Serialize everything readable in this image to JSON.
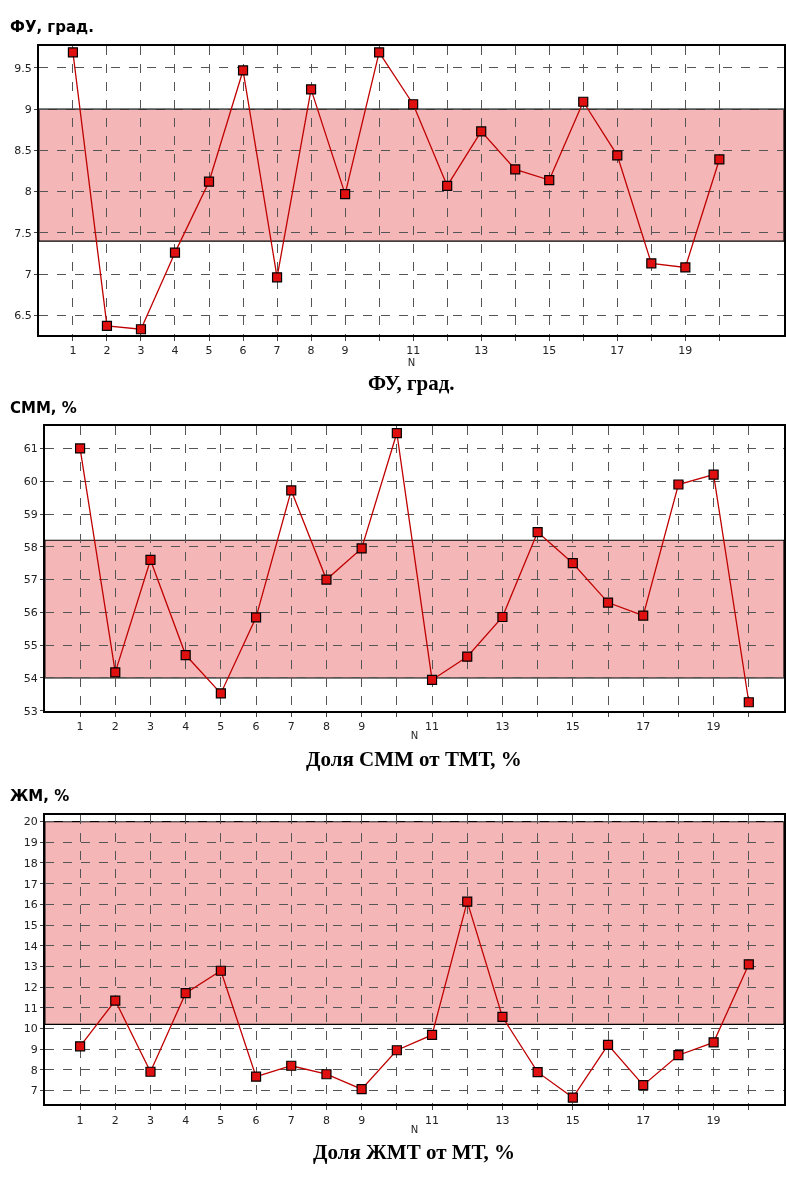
{
  "chart_data": [
    {
      "type": "line",
      "ylabel": "ФУ, град.",
      "xlabel": "N",
      "title": "ФУ, град.",
      "marker": "square",
      "grid": true,
      "line_style": "solid",
      "x": [
        1,
        2,
        3,
        4,
        5,
        6,
        7,
        8,
        9,
        10,
        11,
        12,
        13,
        14,
        15,
        16,
        17,
        18,
        19,
        20
      ],
      "series": [
        {
          "color": "#c00000",
          "values": [
            9.69,
            6.37,
            6.33,
            7.26,
            8.12,
            9.47,
            6.96,
            9.24,
            7.97,
            9.69,
            9.06,
            8.07,
            8.73,
            8.27,
            8.14,
            9.09,
            8.44,
            7.13,
            7.08,
            8.39
          ]
        }
      ],
      "xlim": [
        0,
        21.9
      ],
      "ylim": [
        6.26,
        9.77
      ],
      "xticks": [
        1,
        2,
        3,
        4,
        5,
        6,
        7,
        8,
        9,
        {
          "value": 10,
          "label": null
        },
        11,
        {
          "value": 12,
          "label": null
        },
        13,
        {
          "value": 14,
          "label": null
        },
        15,
        {
          "value": 16,
          "label": null
        },
        17,
        {
          "value": 18,
          "label": null
        },
        19,
        {
          "value": 20,
          "label": null
        }
      ],
      "yticks": [
        6.5,
        7,
        7.5,
        8,
        8.5,
        9,
        9.5
      ],
      "bands": [
        {
          "axis": "y",
          "from": 7.4,
          "to": 9.0,
          "color": "#f4b6b6"
        }
      ]
    },
    {
      "type": "line",
      "ylabel": "СММ, %",
      "xlabel": "N",
      "title": "Доля СММ от ТМТ, %",
      "marker": "square",
      "grid": true,
      "line_style": "solid",
      "x": [
        1,
        2,
        3,
        4,
        5,
        6,
        7,
        8,
        9,
        10,
        11,
        12,
        13,
        14,
        15,
        16,
        17,
        18,
        19,
        20
      ],
      "series": [
        {
          "color": "#c00000",
          "values": [
            61.0,
            54.17,
            57.6,
            54.7,
            53.53,
            55.85,
            59.72,
            57.0,
            57.95,
            61.47,
            53.94,
            54.65,
            55.86,
            58.45,
            57.5,
            56.3,
            55.9,
            59.9,
            60.2,
            53.26
          ]
        }
      ],
      "xlim": [
        0,
        21
      ],
      "ylim": [
        53,
        61.67
      ],
      "xticks": [
        1,
        2,
        3,
        4,
        5,
        6,
        7,
        8,
        9,
        {
          "value": 10,
          "label": null
        },
        11,
        {
          "value": 12,
          "label": null
        },
        13,
        {
          "value": 14,
          "label": null
        },
        15,
        {
          "value": 16,
          "label": null
        },
        17,
        {
          "value": 18,
          "label": null
        },
        19,
        {
          "value": 20,
          "label": null
        }
      ],
      "yticks": [
        53,
        54,
        55,
        56,
        57,
        58,
        59,
        60,
        61
      ],
      "bands": [
        {
          "axis": "y",
          "from": 54.0,
          "to": 58.2,
          "color": "#f4b6b6"
        }
      ]
    },
    {
      "type": "line",
      "ylabel": "ЖМ, %",
      "xlabel": "N",
      "title": "Доля ЖМТ от МТ, %",
      "marker": "square",
      "grid": true,
      "line_style": "solid",
      "x": [
        1,
        2,
        3,
        4,
        5,
        6,
        7,
        8,
        9,
        10,
        11,
        12,
        13,
        14,
        15,
        16,
        17,
        18,
        19,
        20
      ],
      "series": [
        {
          "color": "#c00000",
          "values": [
            9.14,
            11.35,
            7.91,
            11.71,
            12.79,
            7.67,
            8.2,
            7.79,
            7.07,
            8.95,
            9.69,
            16.13,
            10.56,
            7.89,
            6.66,
            9.21,
            7.26,
            8.71,
            9.33,
            13.1
          ]
        }
      ],
      "xlim": [
        0,
        21
      ],
      "ylim": [
        6.33,
        20.31
      ],
      "xticks": [
        1,
        2,
        3,
        4,
        5,
        6,
        7,
        8,
        9,
        {
          "value": 10,
          "label": null
        },
        11,
        {
          "value": 12,
          "label": null
        },
        13,
        {
          "value": 14,
          "label": null
        },
        15,
        {
          "value": 16,
          "label": null
        },
        17,
        {
          "value": 18,
          "label": null
        },
        19,
        {
          "value": 20,
          "label": null
        }
      ],
      "yticks": [
        7,
        8,
        9,
        10,
        11,
        12,
        13,
        14,
        15,
        16,
        17,
        18,
        19,
        20
      ],
      "bands": [
        {
          "axis": "y",
          "from": 10.2,
          "to": 20,
          "color": "#f4b6b6"
        }
      ]
    }
  ]
}
